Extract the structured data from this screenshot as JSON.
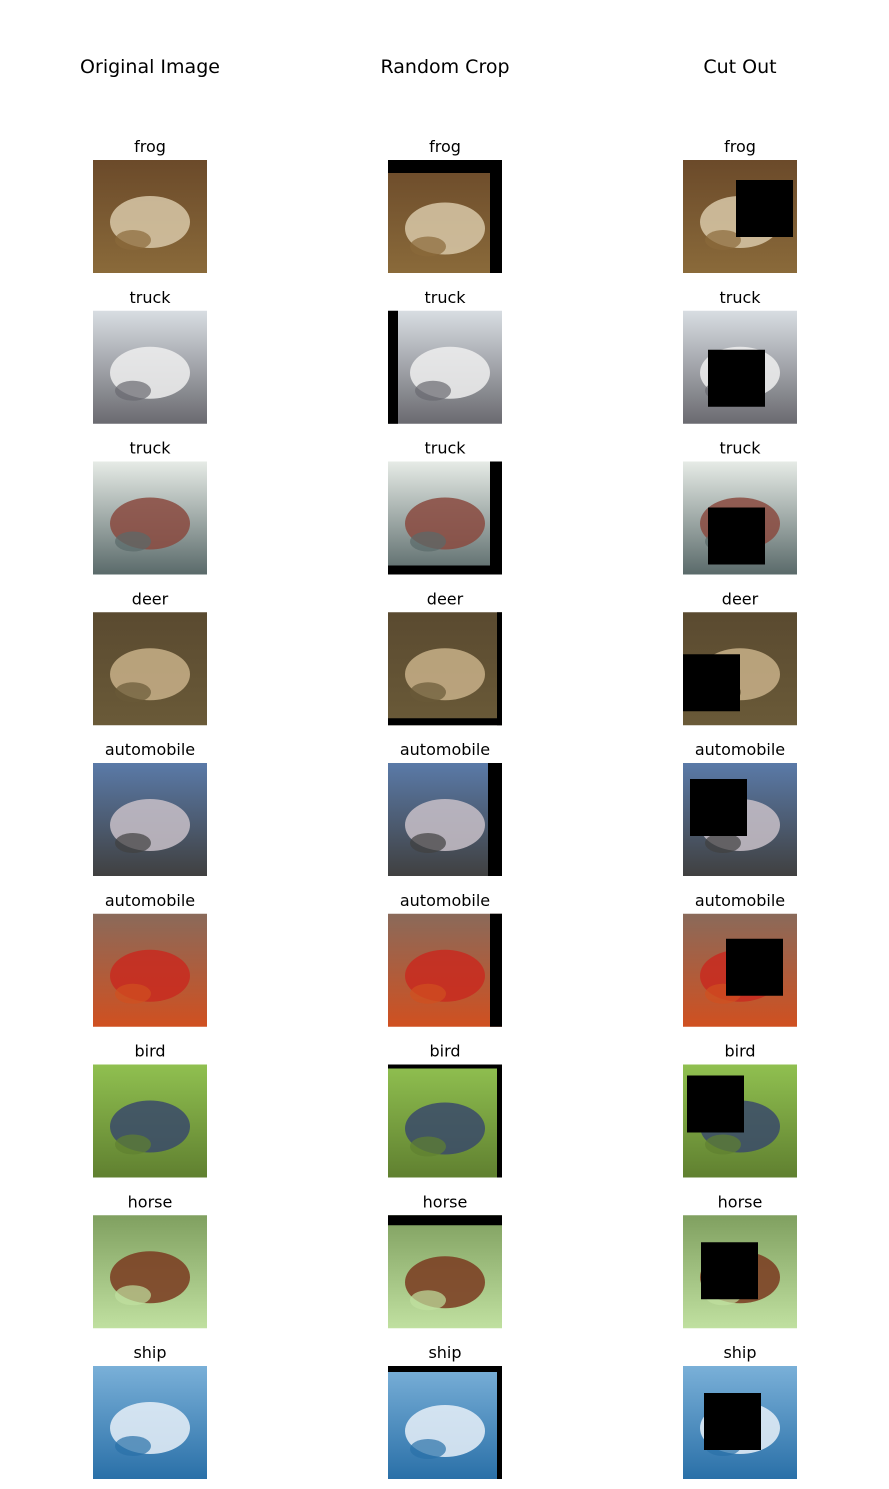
{
  "columns": [
    "Original Image",
    "Random Crop",
    "Cut Out"
  ],
  "rows": [
    {
      "label": "frog"
    },
    {
      "label": "truck"
    },
    {
      "label": "truck"
    },
    {
      "label": "deer"
    },
    {
      "label": "automobile"
    },
    {
      "label": "automobile"
    },
    {
      "label": "bird"
    },
    {
      "label": "horse"
    },
    {
      "label": "ship"
    }
  ]
}
